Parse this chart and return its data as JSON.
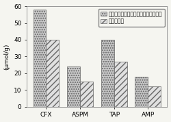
{
  "categories": [
    "CFX",
    "ASPM",
    "TAP",
    "AMP"
  ],
  "imprinted": [
    58,
    24,
    40,
    18
  ],
  "non_imprinted": [
    40,
    15,
    27,
    12
  ],
  "legend_imprinted": "磁性多级孔栗子壳炭球基表面印迹材料",
  "legend_non_imprinted": "非印迹材料",
  "ylabel": "(μmol/g)",
  "ylim": [
    0,
    60
  ],
  "yticks": [
    0,
    10,
    20,
    30,
    40,
    50,
    60
  ],
  "bar_color_imprinted": "#c8c8c8",
  "bar_color_non_imprinted": "#e0e0e0",
  "hatch_imprinted": ".....",
  "hatch_non_imprinted": "////",
  "edge_color": "#666666",
  "background_color": "#f5f5f0",
  "bar_width": 0.38,
  "tick_fontsize": 6.5,
  "legend_fontsize": 5.5
}
